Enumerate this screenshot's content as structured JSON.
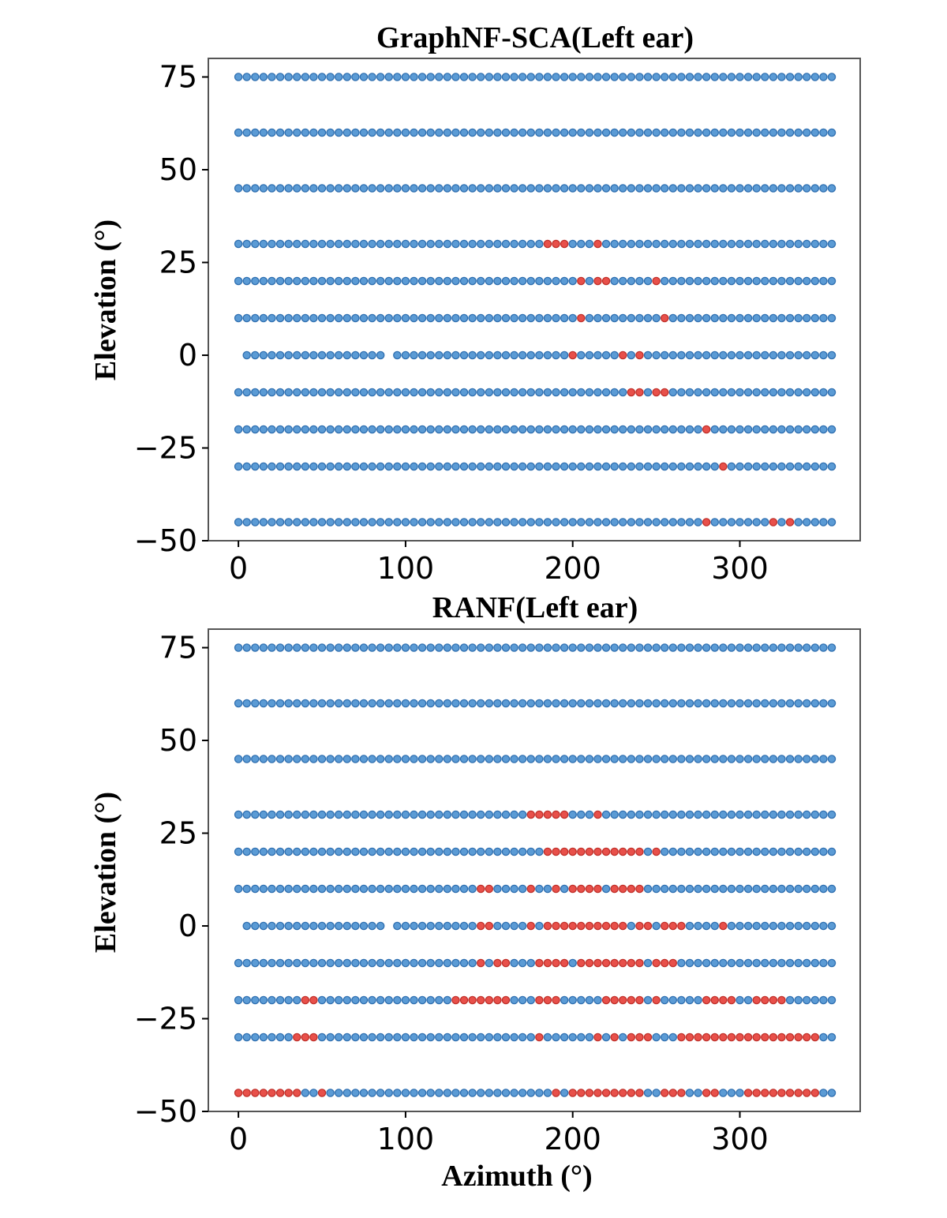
{
  "chart_data": [
    {
      "type": "scatter",
      "title": "GraphNF-SCA(Left ear)",
      "xlabel": "",
      "ylabel": "Elevation (°)",
      "xticks": [
        0,
        100,
        200,
        300
      ],
      "yticks": [
        75,
        50,
        25,
        0,
        -25,
        -50
      ],
      "xlim": [
        -18,
        372
      ],
      "ylim": [
        -50,
        80
      ],
      "elevations": [
        75,
        60,
        45,
        30,
        20,
        10,
        0,
        -10,
        -20,
        -30,
        -45
      ],
      "azimuth_step": 5,
      "azimuth_range": [
        0,
        355
      ],
      "missing_points": [
        {
          "elevation": 0,
          "azimuths": [
            0,
            90
          ]
        }
      ],
      "colors": {
        "correct": "#5b9bd5",
        "correct_edge": "#2f6fb0",
        "error": "#e8504a",
        "error_edge": "#c0302a"
      },
      "error_points": [
        {
          "elevation": 30,
          "azimuths": [
            185,
            190,
            195,
            215
          ]
        },
        {
          "elevation": 20,
          "azimuths": [
            205,
            215,
            220,
            250
          ]
        },
        {
          "elevation": 10,
          "azimuths": [
            205,
            255
          ]
        },
        {
          "elevation": 0,
          "azimuths": [
            200,
            230,
            240
          ]
        },
        {
          "elevation": -10,
          "azimuths": [
            235,
            240,
            250,
            255
          ]
        },
        {
          "elevation": -20,
          "azimuths": [
            280
          ]
        },
        {
          "elevation": -30,
          "azimuths": [
            290
          ]
        },
        {
          "elevation": -45,
          "azimuths": [
            280,
            320,
            330
          ]
        }
      ]
    },
    {
      "type": "scatter",
      "title": "RANF(Left ear)",
      "xlabel": "Azimuth (°)",
      "ylabel": "Elevation (°)",
      "xticks": [
        0,
        100,
        200,
        300
      ],
      "yticks": [
        75,
        50,
        25,
        0,
        -25,
        -50
      ],
      "xlim": [
        -18,
        372
      ],
      "ylim": [
        -50,
        80
      ],
      "elevations": [
        75,
        60,
        45,
        30,
        20,
        10,
        0,
        -10,
        -20,
        -30,
        -45
      ],
      "azimuth_step": 5,
      "azimuth_range": [
        0,
        355
      ],
      "missing_points": [
        {
          "elevation": 0,
          "azimuths": [
            0,
            90
          ]
        }
      ],
      "colors": {
        "correct": "#5b9bd5",
        "correct_edge": "#2f6fb0",
        "error": "#e8504a",
        "error_edge": "#c0302a"
      },
      "error_points": [
        {
          "elevation": 30,
          "azimuths": [
            175,
            180,
            185,
            190,
            195,
            215
          ]
        },
        {
          "elevation": 20,
          "azimuths": [
            185,
            190,
            195,
            200,
            205,
            210,
            215,
            220,
            225,
            230,
            235,
            240,
            250
          ]
        },
        {
          "elevation": 10,
          "azimuths": [
            145,
            150,
            175,
            190,
            200,
            205,
            210,
            215,
            225,
            230,
            235,
            240
          ]
        },
        {
          "elevation": 0,
          "azimuths": [
            145,
            150,
            175,
            185,
            190,
            195,
            200,
            205,
            210,
            215,
            220,
            225,
            230,
            240,
            245,
            255,
            260,
            265,
            290
          ]
        },
        {
          "elevation": -10,
          "azimuths": [
            145,
            155,
            160,
            180,
            185,
            190,
            195,
            205,
            210,
            215,
            220,
            225,
            230,
            235,
            240,
            250,
            255,
            260
          ]
        },
        {
          "elevation": -20,
          "azimuths": [
            40,
            45,
            130,
            135,
            140,
            145,
            150,
            155,
            160,
            180,
            185,
            190,
            220,
            225,
            230,
            235,
            240,
            250,
            280,
            285,
            290,
            295,
            310,
            315,
            320,
            325
          ]
        },
        {
          "elevation": -30,
          "azimuths": [
            35,
            40,
            45,
            180,
            215,
            225,
            235,
            240,
            245,
            265,
            270,
            275,
            280,
            285,
            290,
            295,
            300,
            305,
            310,
            315,
            320,
            325,
            330,
            335,
            340,
            345
          ]
        },
        {
          "elevation": -45,
          "azimuths": [
            0,
            5,
            10,
            15,
            20,
            25,
            30,
            35,
            50,
            190,
            200,
            205,
            210,
            215,
            220,
            225,
            230,
            235,
            240,
            255,
            260,
            265,
            280,
            285,
            305,
            310,
            315,
            320,
            325,
            330,
            335,
            340,
            345
          ]
        }
      ]
    }
  ]
}
